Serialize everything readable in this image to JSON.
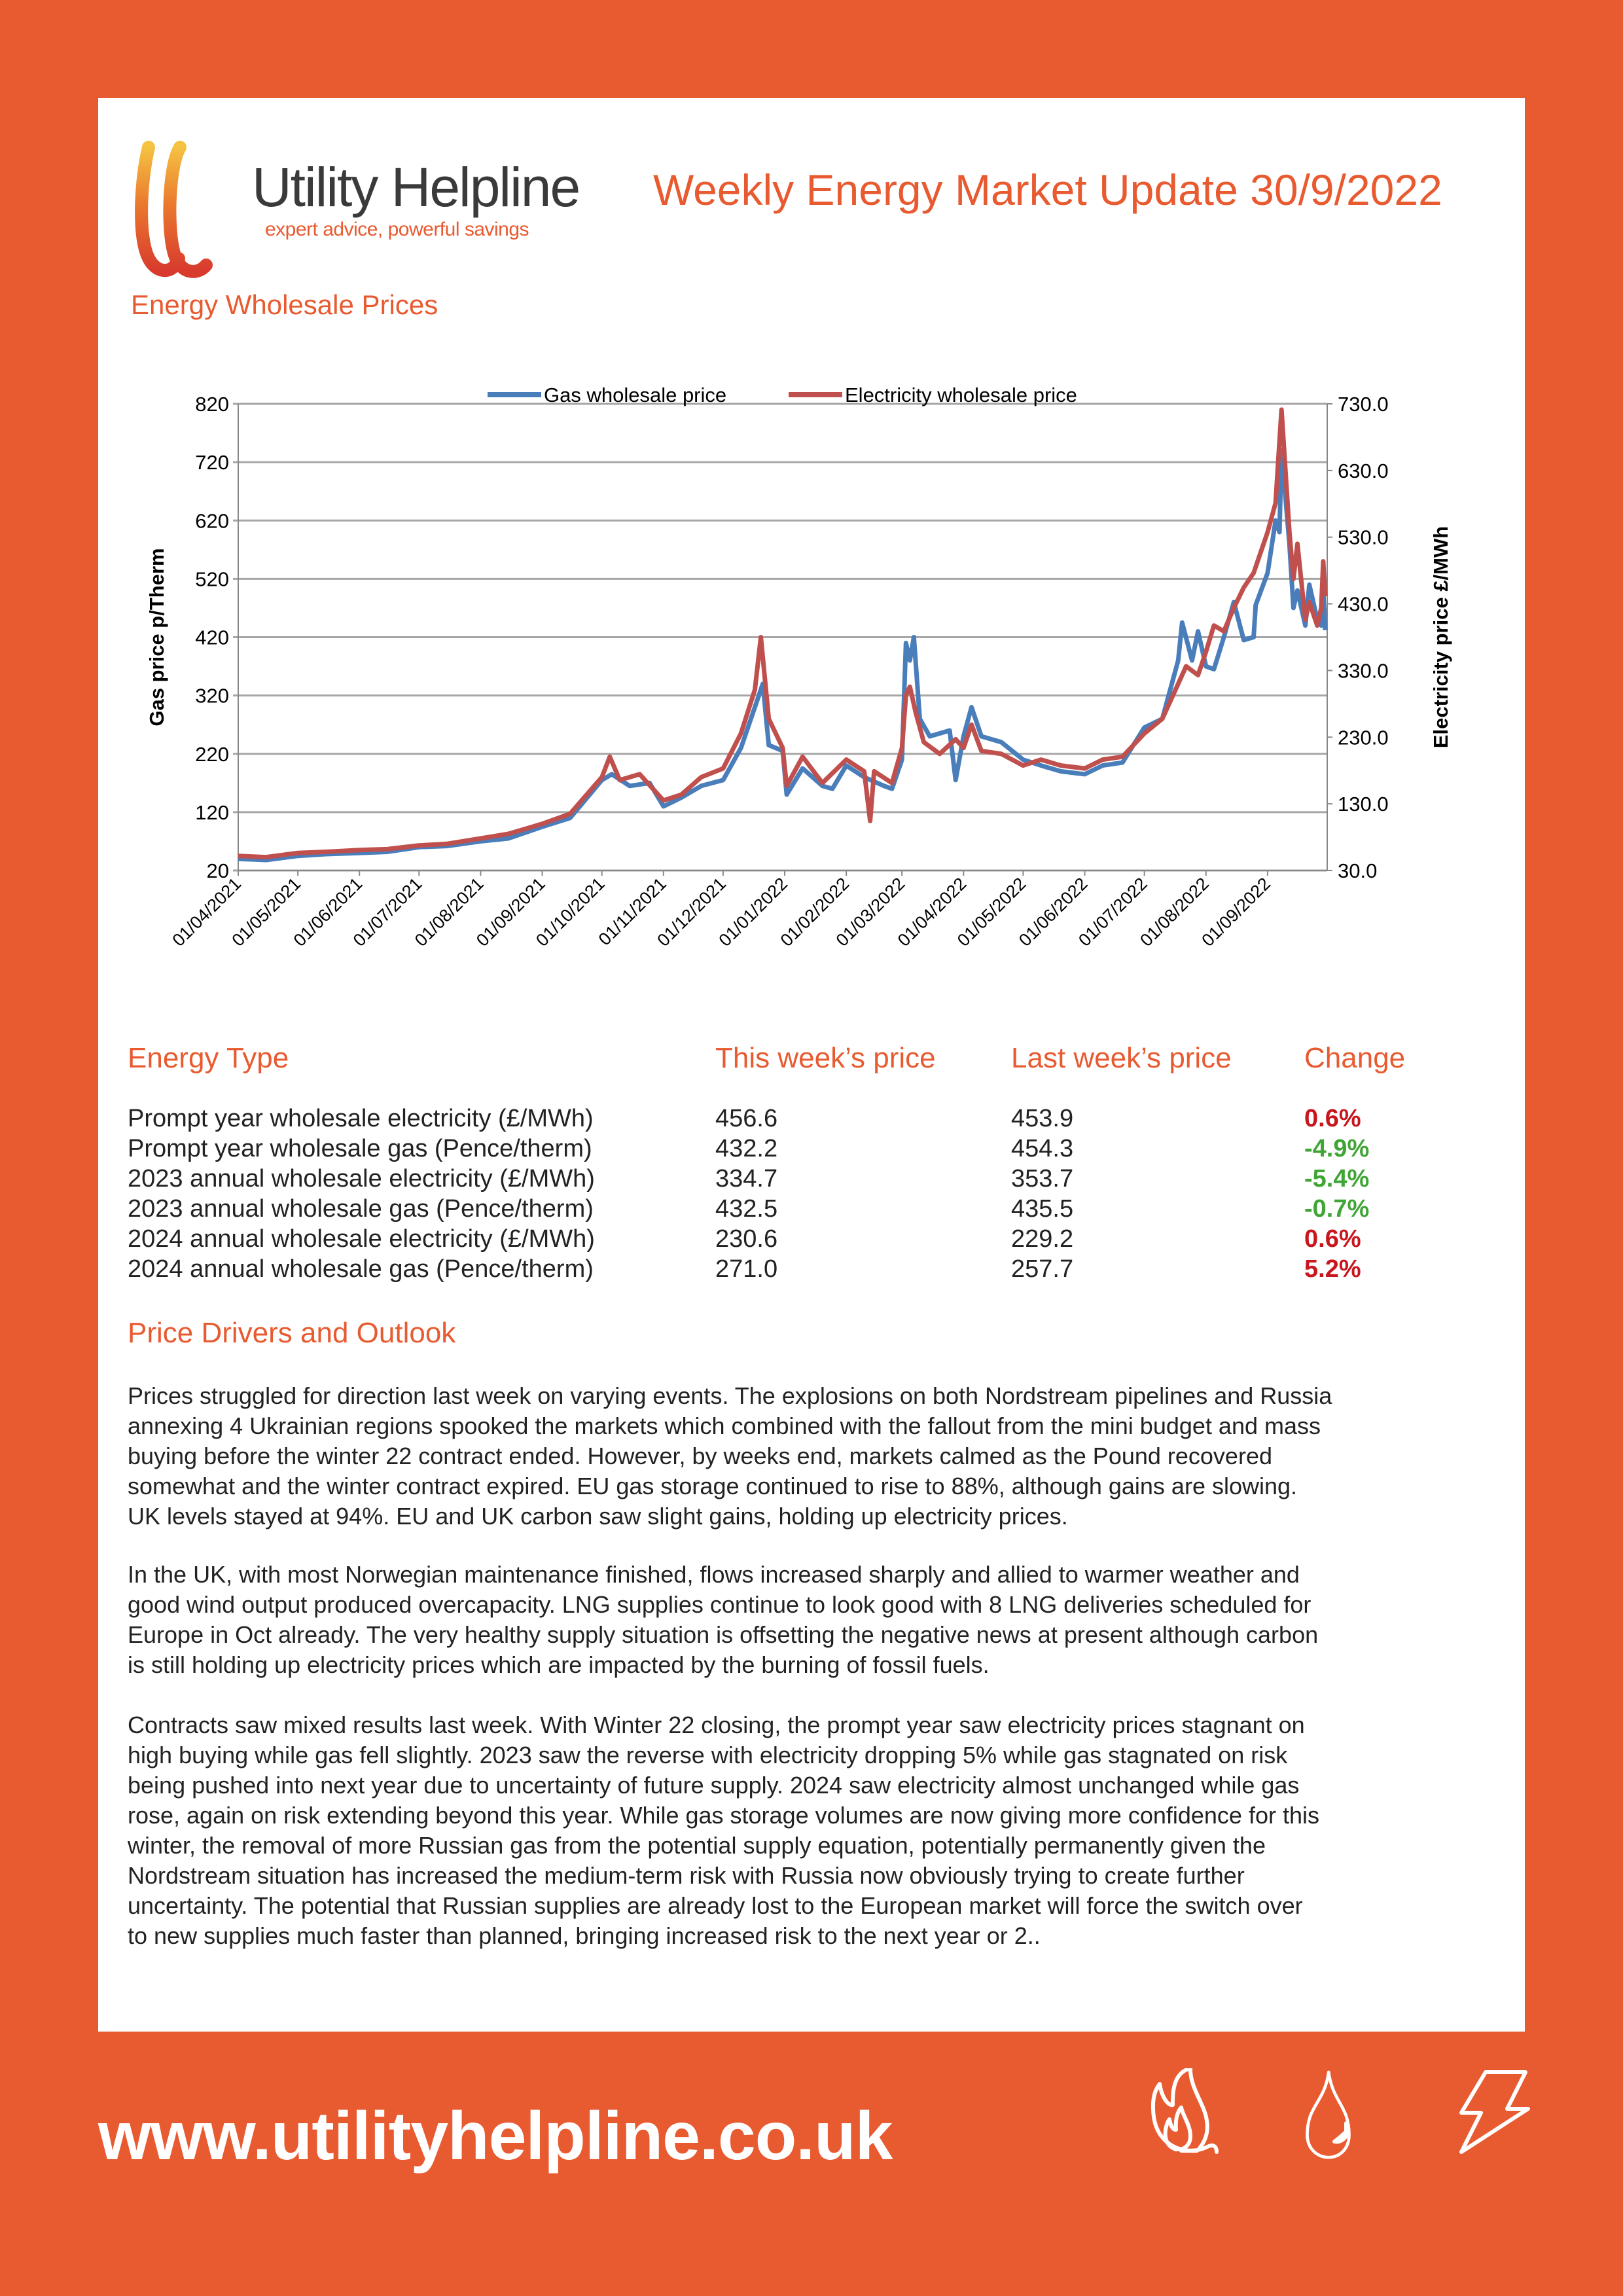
{
  "header": {
    "brand_name": "Utility Helpline",
    "tagline": "expert advice, powerful savings",
    "title": "Weekly Energy Market Update 30/9/2022"
  },
  "section_chart_title": "Energy Wholesale Prices",
  "chart_data": {
    "type": "line",
    "title": "",
    "x_range": [
      "2021-04-01",
      "2022-10-01"
    ],
    "xtick_labels": [
      "01/04/2021",
      "01/05/2021",
      "01/06/2021",
      "01/07/2021",
      "01/08/2021",
      "01/09/2021",
      "01/10/2021",
      "01/11/2021",
      "01/12/2021",
      "01/01/2022",
      "01/02/2022",
      "01/03/2022",
      "01/04/2022",
      "01/05/2022",
      "01/06/2022",
      "01/07/2022",
      "01/08/2022",
      "01/09/2022"
    ],
    "ylabel_left": "Gas price p/Therm",
    "ylabel_right": "Electricity price £/MWh",
    "ylim_left": [
      20,
      820
    ],
    "ylim_right": [
      30,
      730
    ],
    "yticks_left": [
      "20",
      "120",
      "220",
      "320",
      "420",
      "520",
      "620",
      "720",
      "820"
    ],
    "yticks_right": [
      "30.0",
      "130.0",
      "230.0",
      "330.0",
      "430.0",
      "530.0",
      "630.0",
      "730.0"
    ],
    "grid": true,
    "legend_position": "top",
    "series": [
      {
        "name": "Gas wholesale price",
        "axis": "left",
        "color": "#4A7EBB",
        "x": [
          "2021-04-01",
          "2021-04-15",
          "2021-05-01",
          "2021-05-15",
          "2021-06-01",
          "2021-06-15",
          "2021-07-01",
          "2021-07-15",
          "2021-08-01",
          "2021-08-15",
          "2021-09-01",
          "2021-09-15",
          "2021-10-01",
          "2021-10-06",
          "2021-10-15",
          "2021-10-25",
          "2021-11-01",
          "2021-11-10",
          "2021-11-20",
          "2021-12-01",
          "2021-12-10",
          "2021-12-17",
          "2021-12-21",
          "2021-12-24",
          "2021-12-31",
          "2022-01-02",
          "2022-01-10",
          "2022-01-20",
          "2022-01-25",
          "2022-02-01",
          "2022-02-10",
          "2022-02-20",
          "2022-02-24",
          "2022-03-01",
          "2022-03-03",
          "2022-03-05",
          "2022-03-07",
          "2022-03-10",
          "2022-03-15",
          "2022-03-25",
          "2022-03-28",
          "2022-04-01",
          "2022-04-05",
          "2022-04-10",
          "2022-04-20",
          "2022-05-01",
          "2022-05-10",
          "2022-05-20",
          "2022-06-01",
          "2022-06-10",
          "2022-06-20",
          "2022-07-01",
          "2022-07-10",
          "2022-07-18",
          "2022-07-20",
          "2022-07-25",
          "2022-07-28",
          "2022-08-01",
          "2022-08-05",
          "2022-08-10",
          "2022-08-15",
          "2022-08-20",
          "2022-08-25",
          "2022-08-26",
          "2022-09-01",
          "2022-09-05",
          "2022-09-07",
          "2022-09-08",
          "2022-09-12",
          "2022-09-14",
          "2022-09-16",
          "2022-09-20",
          "2022-09-22",
          "2022-09-26",
          "2022-09-28",
          "2022-09-29",
          "2022-09-30"
        ],
        "values": [
          40,
          38,
          45,
          48,
          50,
          52,
          60,
          62,
          70,
          75,
          95,
          110,
          175,
          185,
          165,
          170,
          130,
          145,
          165,
          175,
          230,
          300,
          340,
          235,
          225,
          150,
          195,
          165,
          160,
          200,
          180,
          165,
          160,
          210,
          410,
          380,
          420,
          280,
          250,
          260,
          175,
          250,
          300,
          250,
          240,
          210,
          200,
          190,
          185,
          200,
          205,
          265,
          280,
          380,
          445,
          380,
          430,
          370,
          365,
          420,
          480,
          415,
          420,
          475,
          530,
          620,
          600,
          740,
          580,
          470,
          500,
          440,
          510,
          450,
          440,
          500,
          432
        ]
      },
      {
        "name": "Electricity wholesale price",
        "axis": "right",
        "color": "#C0504D",
        "x": [
          "2021-04-01",
          "2021-04-15",
          "2021-05-01",
          "2021-05-15",
          "2021-06-01",
          "2021-06-15",
          "2021-07-01",
          "2021-07-15",
          "2021-08-01",
          "2021-08-15",
          "2021-09-01",
          "2021-09-15",
          "2021-10-01",
          "2021-10-05",
          "2021-10-10",
          "2021-10-20",
          "2021-11-01",
          "2021-11-10",
          "2021-11-20",
          "2021-12-01",
          "2021-12-10",
          "2021-12-17",
          "2021-12-20",
          "2021-12-24",
          "2021-12-31",
          "2022-01-02",
          "2022-01-10",
          "2022-01-20",
          "2022-02-01",
          "2022-02-10",
          "2022-02-13",
          "2022-02-15",
          "2022-02-24",
          "2022-03-01",
          "2022-03-03",
          "2022-03-05",
          "2022-03-08",
          "2022-03-12",
          "2022-03-20",
          "2022-03-28",
          "2022-04-01",
          "2022-04-05",
          "2022-04-10",
          "2022-04-20",
          "2022-05-01",
          "2022-05-10",
          "2022-05-20",
          "2022-06-01",
          "2022-06-10",
          "2022-06-20",
          "2022-07-01",
          "2022-07-10",
          "2022-07-18",
          "2022-07-22",
          "2022-07-28",
          "2022-08-01",
          "2022-08-05",
          "2022-08-10",
          "2022-08-15",
          "2022-08-20",
          "2022-08-25",
          "2022-09-01",
          "2022-09-05",
          "2022-09-08",
          "2022-09-12",
          "2022-09-14",
          "2022-09-16",
          "2022-09-20",
          "2022-09-22",
          "2022-09-26",
          "2022-09-28",
          "2022-09-29",
          "2022-09-30"
        ],
        "values": [
          51.9,
          50,
          56.3,
          58,
          60.6,
          62,
          67.6,
          70,
          78.1,
          85,
          100,
          115,
          170,
          200.6,
          165.6,
          174.4,
          135,
          143.8,
          170,
          183.1,
          235.6,
          301.3,
          380,
          257.5,
          213.8,
          156.9,
          200.6,
          161.3,
          196.3,
          178.8,
          104.4,
          178.8,
          161.3,
          213.8,
          292.5,
          305.6,
          266.3,
          222.5,
          205,
          226.9,
          213.8,
          248.8,
          209.4,
          205,
          187.5,
          196.3,
          187.5,
          183.1,
          196.3,
          200.6,
          235.6,
          257.5,
          310,
          336.3,
          323.1,
          358.1,
          397.5,
          388.8,
          423.8,
          454.4,
          476.3,
          537.5,
          581.3,
          721.3,
          537.5,
          467.5,
          520,
          406.3,
          432.5,
          397.5,
          423.8,
          493.8,
          441.3
        ]
      }
    ]
  },
  "table": {
    "headers": [
      "Energy Type",
      "This week’s price",
      "Last week’s price",
      "Change"
    ],
    "rows": [
      {
        "type": "Prompt year wholesale electricity (£/MWh)",
        "this_week": "456.6",
        "last_week": "453.9",
        "change": "0.6%",
        "color": "#C8161E"
      },
      {
        "type": "Prompt year wholesale gas (Pence/therm)",
        "this_week": "432.2",
        "last_week": "454.3",
        "change": "-4.9%",
        "color": "#3FA535"
      },
      {
        "type": "2023 annual wholesale electricity (£/MWh)",
        "this_week": "334.7",
        "last_week": "353.7",
        "change": "-5.4%",
        "color": "#3FA535"
      },
      {
        "type": "2023 annual wholesale gas (Pence/therm)",
        "this_week": "432.5",
        "last_week": "435.5",
        "change": "-0.7%",
        "color": "#3FA535"
      },
      {
        "type": "2024 annual wholesale electricity (£/MWh)",
        "this_week": "230.6",
        "last_week": "229.2",
        "change": "0.6%",
        "color": "#C8161E"
      },
      {
        "type": "2024 annual wholesale gas (Pence/therm)",
        "this_week": "271.0",
        "last_week": "257.7",
        "change": "5.2%",
        "color": "#C8161E"
      }
    ]
  },
  "outlook": {
    "title": "Price Drivers and Outlook",
    "paragraphs": [
      [
        "Prices struggled for direction last week on varying events. The explosions on both Nordstream pipelines and Russia",
        "annexing 4 Ukrainian regions spooked the markets which combined with the fallout from the mini budget and mass",
        "buying before the winter 22 contract ended. However, by weeks end, markets calmed as the Pound recovered",
        "somewhat and the winter contract expired. EU gas storage continued to rise to 88%, although gains are slowing.",
        "UK levels stayed at 94%. EU and UK carbon saw slight gains, holding up electricity prices."
      ],
      [
        "In the UK, with most Norwegian maintenance finished, flows increased sharply and allied to warmer weather and",
        "good wind output produced overcapacity. LNG supplies continue to look good with 8 LNG deliveries scheduled for",
        "Europe in Oct already. The very healthy supply situation is offsetting the negative news at present although carbon",
        "is still holding up electricity prices which are impacted by the burning of fossil fuels."
      ],
      [
        "Contracts saw mixed results last week. With Winter 22 closing, the prompt year saw electricity prices stagnant on",
        "high buying while gas fell slightly. 2023 saw the reverse with electricity dropping 5% while gas stagnated on risk",
        "being pushed into next year due to uncertainty of future supply. 2024 saw electricity almost unchanged while gas",
        "rose, again on risk extending beyond this year. While gas storage volumes are now giving more confidence for this",
        "winter, the removal of more Russian gas from the potential supply equation, potentially permanently given the",
        "Nordstream situation has increased the medium-term risk with Russia now obviously trying to create further",
        "uncertainty. The potential that Russian supplies are already lost to the European market will force the switch over",
        "to new supplies much faster than planned, bringing increased risk to the next year or 2.."
      ]
    ]
  },
  "footer": {
    "url": "www.utilityhelpline.co.uk",
    "icons": [
      "flame-icon",
      "water-drop-icon",
      "lightning-icon"
    ]
  },
  "colors": {
    "brand": "#E85A2F",
    "gas": "#4A7EBB",
    "electricity": "#C0504D",
    "up": "#C8161E",
    "down": "#3FA535"
  }
}
